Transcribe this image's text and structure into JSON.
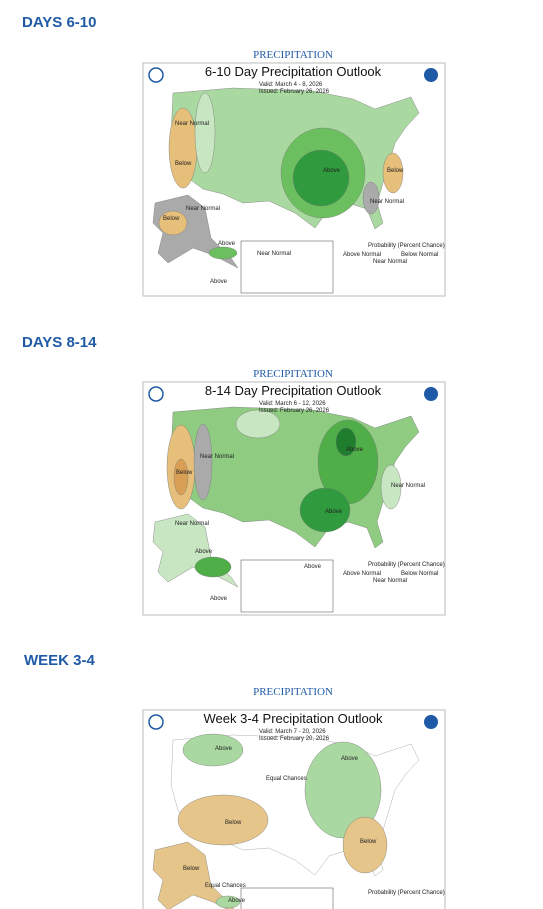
{
  "sections": [
    {
      "heading": "DAYS 6-10",
      "label": "PRECIPITATION",
      "map": {
        "title": "6-10 Day Precipitation Outlook",
        "valid": "Valid:  March 4 - 8, 2026",
        "issued": "Issued:  February 26, 2026",
        "regions": [
          "Near Normal",
          "Below",
          "Above",
          "Below",
          "Near Normal",
          "Near Normal",
          "Below",
          "Above",
          "Near Normal",
          "Above"
        ],
        "legend": [
          "Probability (Percent Chance)",
          "Above Normal",
          "Near Normal",
          "Below Normal"
        ]
      }
    },
    {
      "heading": "DAYS 8-14",
      "label": "PRECIPITATION",
      "map": {
        "title": "8-14 Day Precipitation Outlook",
        "valid": "Valid:  March 6 - 12, 2026",
        "issued": "Issued:  February 26, 2026",
        "regions": [
          "Near Normal",
          "Below",
          "Above",
          "Near Normal",
          "Above",
          "Near Normal",
          "Above",
          "Above",
          "Above"
        ],
        "legend": [
          "Probability (Percent Chance)",
          "Above Normal",
          "Near Normal",
          "Below Normal"
        ]
      }
    },
    {
      "heading": "WEEK 3-4",
      "label": "PRECIPITATION",
      "map": {
        "title": "Week 3-4 Precipitation Outlook",
        "valid": "Valid:  March 7 - 20, 2026",
        "issued": "Issued:  February 20, 2026",
        "regions": [
          "Above",
          "Equal Chances",
          "Above",
          "Below",
          "Below",
          "Below",
          "Equal Chances",
          "Above"
        ],
        "legend": [
          "Probability (Percent Chance)"
        ]
      }
    }
  ]
}
